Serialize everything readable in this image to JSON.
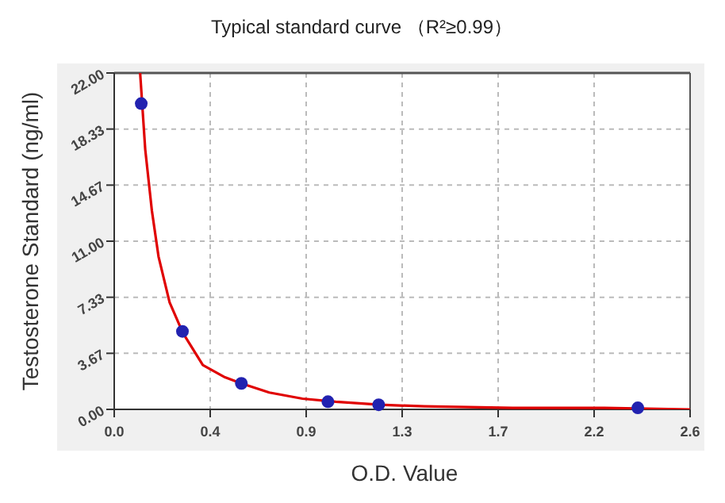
{
  "chart_data": {
    "type": "scatter",
    "title": "Typical standard curve （R²≥0.99）",
    "xlabel": "O.D. Value",
    "ylabel": "Testosterone Standard (ng/ml)",
    "series": [
      {
        "type": "line",
        "color": "#e00000",
        "x": [
          0.117,
          0.14,
          0.17,
          0.2,
          0.25,
          0.31,
          0.4,
          0.5,
          0.574,
          0.7,
          0.85,
          1.0,
          1.2,
          1.4,
          1.8,
          2.2,
          2.6
        ],
        "values": [
          22,
          17,
          13,
          10,
          7,
          5,
          2.9,
          2.1,
          1.7,
          1.1,
          0.7,
          0.5,
          0.3,
          0.2,
          0.1,
          0.1,
          0.0
        ]
      },
      {
        "color": "#2222b0",
        "marker": "circle",
        "x": [
          0.122,
          0.308,
          0.574,
          0.965,
          1.194,
          2.364
        ],
        "values": [
          20.0,
          5.1,
          1.7,
          0.5,
          0.3,
          0.1
        ]
      }
    ],
    "xlim": [
      0,
      2.6
    ],
    "ylim": [
      0,
      22
    ],
    "xticks": [
      {
        "value": 0,
        "label": "0.0"
      },
      {
        "value": 0.4333,
        "label": "0.4"
      },
      {
        "value": 0.8667,
        "label": "0.9"
      },
      {
        "value": 1.3,
        "label": "1.3"
      },
      {
        "value": 1.7333,
        "label": "1.7"
      },
      {
        "value": 2.1667,
        "label": "2.2"
      },
      {
        "value": 2.6,
        "label": "2.6"
      }
    ],
    "yticks": [
      {
        "value": 0,
        "label": "0.00"
      },
      {
        "value": 3.6667,
        "label": "3.67"
      },
      {
        "value": 7.3333,
        "label": "7.33"
      },
      {
        "value": 11,
        "label": "11.00"
      },
      {
        "value": 14.6667,
        "label": "14.67"
      },
      {
        "value": 18.3333,
        "label": "18.33"
      },
      {
        "value": 22,
        "label": "22.00"
      }
    ],
    "grid": true
  }
}
